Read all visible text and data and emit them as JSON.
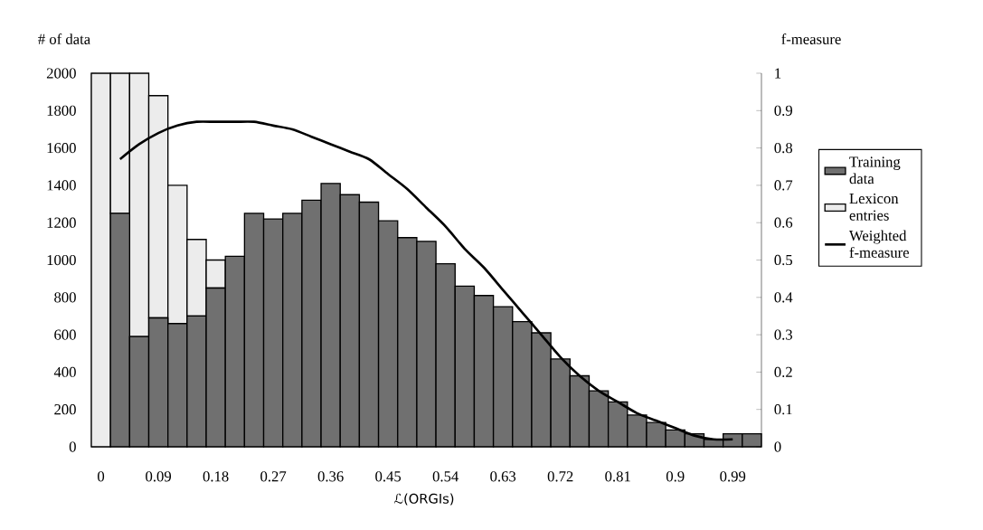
{
  "chart_data": {
    "type": "bar",
    "stacked": true,
    "ylabel": "# of data",
    "y2label": "f-measure",
    "xlabel": "ℒ(ORGIs)",
    "categories": [
      "0",
      null,
      null,
      "0.09",
      null,
      null,
      "0.18",
      null,
      null,
      "0.27",
      null,
      null,
      "0.36",
      null,
      null,
      "0.45",
      null,
      null,
      "0.54",
      null,
      null,
      "0.63",
      null,
      null,
      "0.72",
      null,
      null,
      "0.81",
      null,
      null,
      "0.9",
      null,
      null,
      "0.99",
      null
    ],
    "series": [
      {
        "name": "Training data",
        "color": "#707070",
        "values": [
          0,
          1250,
          590,
          690,
          660,
          700,
          850,
          1020,
          1250,
          1220,
          1250,
          1320,
          1410,
          1350,
          1310,
          1210,
          1120,
          1100,
          980,
          860,
          810,
          750,
          670,
          610,
          470,
          380,
          300,
          240,
          170,
          130,
          90,
          70,
          40,
          70,
          70
        ]
      },
      {
        "name": "Lexicon entries",
        "color": "#ececec",
        "values": [
          2000,
          750,
          1410,
          1190,
          740,
          410,
          150,
          0,
          0,
          0,
          0,
          0,
          0,
          0,
          0,
          0,
          0,
          0,
          0,
          0,
          0,
          0,
          0,
          0,
          0,
          0,
          0,
          0,
          0,
          0,
          0,
          0,
          0,
          0,
          0
        ]
      },
      {
        "name": "Weighted f-measure",
        "type": "line",
        "axis": "y2",
        "color": "#000000",
        "values": [
          null,
          0.77,
          0.81,
          0.84,
          0.86,
          0.87,
          0.87,
          0.87,
          0.87,
          0.86,
          0.85,
          0.83,
          0.81,
          0.79,
          0.77,
          0.73,
          0.69,
          0.64,
          0.59,
          0.53,
          0.48,
          0.42,
          0.36,
          0.3,
          0.24,
          0.19,
          0.15,
          0.12,
          0.09,
          0.07,
          0.05,
          0.03,
          0.02,
          0.02,
          null
        ]
      }
    ],
    "ylim": [
      0,
      2000
    ],
    "yticks": [
      0,
      200,
      400,
      600,
      800,
      1000,
      1200,
      1400,
      1600,
      1800,
      2000
    ],
    "y2lim": [
      0,
      1
    ],
    "y2ticks": [
      0,
      0.1,
      0.2,
      0.3,
      0.4,
      0.5,
      0.6,
      0.7,
      0.8,
      0.9,
      1
    ],
    "legend": "right",
    "marker": "none",
    "line_style": "solid"
  }
}
